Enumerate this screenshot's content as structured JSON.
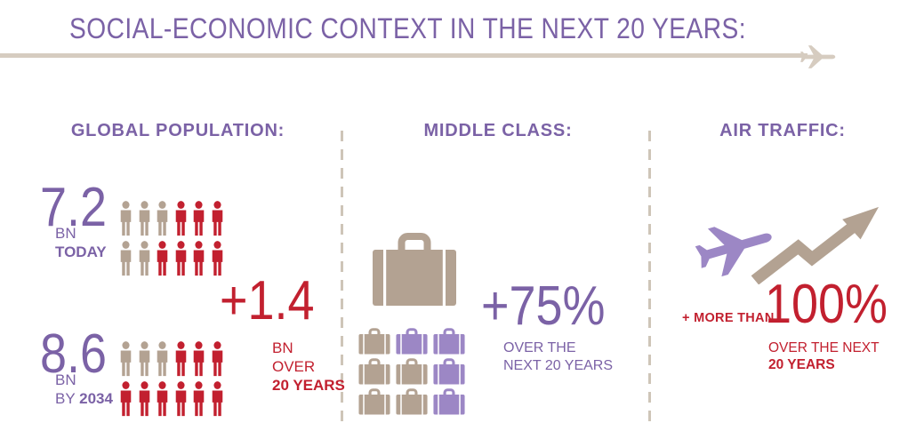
{
  "page": {
    "title": "SOCIAL-ECONOMIC CONTEXT IN THE NEXT 20 YEARS:"
  },
  "colors": {
    "purple": "#7B62A6",
    "purple_light": "#9C87C5",
    "red": "#C2202F",
    "tan": "#B3A292",
    "timeline": "#D6CCC0",
    "divider": "#CEC5B8"
  },
  "sections": {
    "population": {
      "header": "GLOBAL POPULATION:",
      "today": {
        "value": "7.2",
        "unit": "BN",
        "label": "TODAY",
        "people_rows": [
          [
            "tan",
            "tan",
            "tan",
            "red",
            "red",
            "red"
          ],
          [
            "tan",
            "tan",
            "red",
            "red",
            "red",
            "red"
          ]
        ]
      },
      "by2034": {
        "value": "8.6",
        "unit": "BN",
        "label_prefix": "BY",
        "label_year": "2034",
        "people_rows": [
          [
            "tan",
            "tan",
            "tan",
            "red",
            "red",
            "red"
          ],
          [
            "red",
            "red",
            "red",
            "red",
            "red",
            "red"
          ]
        ]
      },
      "growth": {
        "value": "+1.4",
        "line1": "BN",
        "line2": "OVER",
        "line3": "20 YEARS"
      }
    },
    "middle_class": {
      "header": "MIDDLE CLASS:",
      "suitcase_rows": [
        [
          "tan",
          "purple",
          "purple"
        ],
        [
          "tan",
          "tan",
          "purple"
        ],
        [
          "tan",
          "tan",
          "purple"
        ]
      ],
      "growth": {
        "value": "+75%",
        "line1": "OVER THE",
        "line2": "NEXT 20 YEARS"
      }
    },
    "air_traffic": {
      "header": "AIR TRAFFIC:",
      "growth": {
        "prefix": "+ MORE THAN",
        "value": "100%",
        "line1": "OVER THE NEXT",
        "line2": "20 YEARS"
      }
    }
  },
  "chart_data": {
    "type": "table",
    "title": "SOCIAL-ECONOMIC CONTEXT IN THE NEXT 20 YEARS:",
    "rows": [
      {
        "metric": "Global population today",
        "value": "7.2 BN"
      },
      {
        "metric": "Global population by 2034",
        "value": "8.6 BN"
      },
      {
        "metric": "Population growth over 20 years",
        "value": "+1.4 BN"
      },
      {
        "metric": "Middle class growth over the next 20 years",
        "value": "+75%"
      },
      {
        "metric": "Air traffic growth over the next 20 years",
        "value": "+ more than 100%"
      }
    ]
  }
}
